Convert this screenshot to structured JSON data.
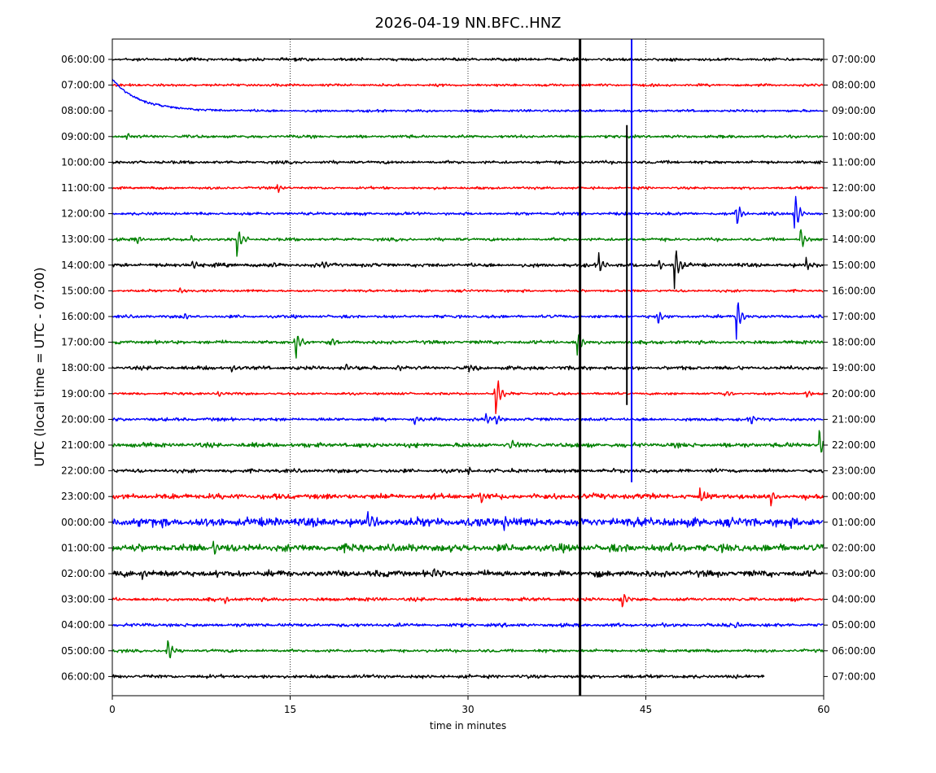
{
  "chart_data": {
    "type": "line",
    "title": "2026-04-19 NN.BFC..HNZ",
    "xlabel": "time in minutes",
    "ylabel": "UTC (local time = UTC - 07:00)",
    "xlim": [
      0,
      60
    ],
    "x_ticks": [
      0,
      15,
      30,
      45,
      60
    ],
    "grid": "vertical dotted lines at 15, 30, 45",
    "trace_colors": [
      "#000000",
      "#ff0000",
      "#0000ff",
      "#008000"
    ],
    "left_labels": [
      "06:00:00",
      "07:00:00",
      "08:00:00",
      "09:00:00",
      "10:00:00",
      "11:00:00",
      "12:00:00",
      "13:00:00",
      "14:00:00",
      "15:00:00",
      "16:00:00",
      "17:00:00",
      "18:00:00",
      "19:00:00",
      "20:00:00",
      "21:00:00",
      "22:00:00",
      "23:00:00",
      "00:00:00",
      "01:00:00",
      "02:00:00",
      "03:00:00",
      "04:00:00",
      "05:00:00",
      "06:00:00"
    ],
    "right_labels": [
      "07:00:00",
      "08:00:00",
      "09:00:00",
      "10:00:00",
      "11:00:00",
      "12:00:00",
      "13:00:00",
      "14:00:00",
      "15:00:00",
      "16:00:00",
      "17:00:00",
      "18:00:00",
      "19:00:00",
      "20:00:00",
      "21:00:00",
      "22:00:00",
      "23:00:00",
      "00:00:00",
      "01:00:00",
      "02:00:00",
      "03:00:00",
      "04:00:00",
      "05:00:00",
      "06:00:00",
      "07:00:00"
    ],
    "trace_noise": [
      1.2,
      1.0,
      1.0,
      1.2,
      1.2,
      1.0,
      1.2,
      1.2,
      1.5,
      1.0,
      1.2,
      1.4,
      1.5,
      1.0,
      1.3,
      1.8,
      1.5,
      2.2,
      3.5,
      3.0,
      2.5,
      1.4,
      1.4,
      1.2,
      1.4
    ],
    "trace_end_minute": [
      60,
      60,
      60,
      60,
      60,
      60,
      60,
      60,
      60,
      60,
      60,
      60,
      60,
      60,
      60,
      60,
      60,
      60,
      60,
      60,
      60,
      60,
      60,
      60,
      55
    ],
    "events": [
      {
        "trace": 2,
        "minute": 0,
        "amplitude": 38,
        "kind": "drift"
      },
      {
        "trace": 3,
        "minute": 1.2,
        "amplitude": 5
      },
      {
        "trace": 5,
        "minute": 13.9,
        "amplitude": 8
      },
      {
        "trace": 6,
        "minute": 52.6,
        "amplitude": 26
      },
      {
        "trace": 6,
        "minute": 57.5,
        "amplitude": 36
      },
      {
        "trace": 7,
        "minute": 2.0,
        "amplitude": 8
      },
      {
        "trace": 7,
        "minute": 6.6,
        "amplitude": 7
      },
      {
        "trace": 7,
        "minute": 10.5,
        "amplitude": 26
      },
      {
        "trace": 7,
        "minute": 58.0,
        "amplitude": 20
      },
      {
        "trace": 8,
        "minute": 6.6,
        "amplitude": 12
      },
      {
        "trace": 8,
        "minute": 13.5,
        "amplitude": 5
      },
      {
        "trace": 8,
        "minute": 17.7,
        "amplitude": 6
      },
      {
        "trace": 8,
        "minute": 41.0,
        "amplitude": 20
      },
      {
        "trace": 8,
        "minute": 46.0,
        "amplitude": 10
      },
      {
        "trace": 8,
        "minute": 47.4,
        "amplitude": 36
      },
      {
        "trace": 8,
        "minute": 58.5,
        "amplitude": 10
      },
      {
        "trace": 9,
        "minute": 5.6,
        "amplitude": 5
      },
      {
        "trace": 10,
        "minute": 6.0,
        "amplitude": 5
      },
      {
        "trace": 10,
        "minute": 46.0,
        "amplitude": 12
      },
      {
        "trace": 10,
        "minute": 52.6,
        "amplitude": 36
      },
      {
        "trace": 11,
        "minute": 15.4,
        "amplitude": 28
      },
      {
        "trace": 11,
        "minute": 18.5,
        "amplitude": 8
      },
      {
        "trace": 11,
        "minute": 39.2,
        "amplitude": 22
      },
      {
        "trace": 12,
        "minute": 10.0,
        "amplitude": 7
      },
      {
        "trace": 12,
        "minute": 19.6,
        "amplitude": 8
      },
      {
        "trace": 12,
        "minute": 24.0,
        "amplitude": 6
      },
      {
        "trace": 12,
        "minute": 30.0,
        "amplitude": 8
      },
      {
        "trace": 13,
        "minute": 8.9,
        "amplitude": 6
      },
      {
        "trace": 13,
        "minute": 32.3,
        "amplitude": 40
      },
      {
        "trace": 13,
        "minute": 51.7,
        "amplitude": 6
      },
      {
        "trace": 13,
        "minute": 58.5,
        "amplitude": 8
      },
      {
        "trace": 14,
        "minute": 25.4,
        "amplitude": 8
      },
      {
        "trace": 14,
        "minute": 31.5,
        "amplitude": 8
      },
      {
        "trace": 14,
        "minute": 32.3,
        "amplitude": 10
      },
      {
        "trace": 14,
        "minute": 53.8,
        "amplitude": 8
      },
      {
        "trace": 15,
        "minute": 33.5,
        "amplitude": 8
      },
      {
        "trace": 15,
        "minute": 59.6,
        "amplitude": 26
      },
      {
        "trace": 16,
        "minute": 30.0,
        "amplitude": 6
      },
      {
        "trace": 16,
        "minute": 50.4,
        "amplitude": 6
      },
      {
        "trace": 17,
        "minute": 31.0,
        "amplitude": 14
      },
      {
        "trace": 17,
        "minute": 49.5,
        "amplitude": 14
      },
      {
        "trace": 17,
        "minute": 55.5,
        "amplitude": 16
      },
      {
        "trace": 18,
        "minute": 21.5,
        "amplitude": 18
      },
      {
        "trace": 18,
        "minute": 33.0,
        "amplitude": 14
      },
      {
        "trace": 19,
        "minute": 8.5,
        "amplitude": 12
      },
      {
        "trace": 19,
        "minute": 47.0,
        "amplitude": 12
      },
      {
        "trace": 20,
        "minute": 2.5,
        "amplitude": 8
      },
      {
        "trace": 20,
        "minute": 27.0,
        "amplitude": 10
      },
      {
        "trace": 21,
        "minute": 9.5,
        "amplitude": 6
      },
      {
        "trace": 21,
        "minute": 43.0,
        "amplitude": 14
      },
      {
        "trace": 22,
        "minute": 52.5,
        "amplitude": 5
      },
      {
        "trace": 23,
        "minute": 4.6,
        "amplitude": 24
      }
    ],
    "big_events": [
      {
        "minute": 39.45,
        "color": "#000000",
        "from_trace": 0,
        "to_trace": 24
      },
      {
        "minute": 43.4,
        "color": "#000000",
        "from_trace": 3,
        "to_trace": 13
      },
      {
        "minute": 43.8,
        "color": "#0000ff",
        "from_trace": 0,
        "to_trace": 16
      }
    ]
  }
}
